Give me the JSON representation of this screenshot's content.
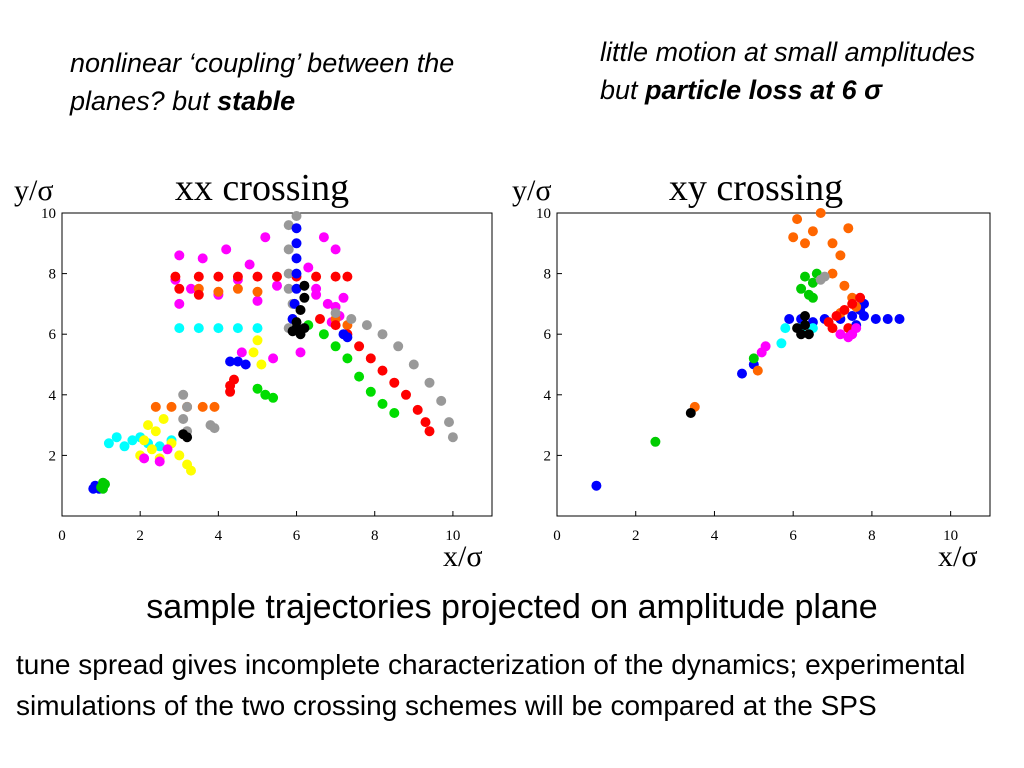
{
  "notes": {
    "left": {
      "text": "nonlinear ‘coupling’ between the planes? but ",
      "bold": "stable"
    },
    "right": {
      "text": "little motion at small amplitudes but ",
      "bold": "particle loss at 6 σ"
    }
  },
  "caption": "sample trajectories projected on amplitude plane",
  "body": "tune spread gives incomplete characterization of the dynamics; experimental simulations of the two crossing schemes will be compared at the SPS",
  "chart_data": [
    {
      "type": "scatter",
      "title": "xx crossing",
      "xlabel": "x/σ",
      "ylabel": "y/σ",
      "xlim": [
        0,
        11
      ],
      "ylim": [
        0,
        10
      ],
      "xticks": [
        0,
        2,
        4,
        6,
        8,
        10
      ],
      "yticks": [
        2,
        4,
        6,
        8,
        10
      ],
      "grid": false,
      "series": [
        {
          "color": "#0000ff",
          "points": [
            [
              0.8,
              0.9
            ],
            [
              0.85,
              1.0
            ],
            [
              0.95,
              0.9
            ],
            [
              1.0,
              1.0
            ],
            [
              0.9,
              0.95
            ]
          ]
        },
        {
          "color": "#00cc00",
          "points": [
            [
              1.05,
              0.9
            ],
            [
              1.1,
              1.05
            ],
            [
              1.05,
              1.1
            ],
            [
              1.0,
              0.95
            ]
          ]
        },
        {
          "color": "#00ffff",
          "points": [
            [
              1.2,
              2.4
            ],
            [
              1.4,
              2.6
            ],
            [
              1.6,
              2.3
            ],
            [
              1.8,
              2.5
            ],
            [
              2.0,
              2.6
            ],
            [
              2.2,
              2.4
            ],
            [
              2.5,
              2.3
            ],
            [
              2.8,
              2.5
            ],
            [
              3.0,
              6.2
            ],
            [
              3.5,
              6.2
            ],
            [
              4.0,
              6.2
            ],
            [
              4.5,
              6.2
            ],
            [
              5.0,
              6.2
            ]
          ]
        },
        {
          "color": "#ffff00",
          "points": [
            [
              2.0,
              2.0
            ],
            [
              2.1,
              2.5
            ],
            [
              2.2,
              3.0
            ],
            [
              2.3,
              2.2
            ],
            [
              2.4,
              2.8
            ],
            [
              2.5,
              1.9
            ],
            [
              2.6,
              3.2
            ],
            [
              2.8,
              2.4
            ],
            [
              3.0,
              2.0
            ],
            [
              3.2,
              1.7
            ],
            [
              3.3,
              1.5
            ],
            [
              5.0,
              5.8
            ],
            [
              5.1,
              5.0
            ],
            [
              4.9,
              5.4
            ]
          ]
        },
        {
          "color": "#ff00ff",
          "points": [
            [
              2.1,
              1.9
            ],
            [
              2.5,
              1.8
            ],
            [
              2.7,
              2.2
            ],
            [
              3.0,
              7.0
            ],
            [
              3.3,
              7.5
            ],
            [
              3.6,
              8.5
            ],
            [
              4.0,
              7.3
            ],
            [
              4.2,
              8.8
            ],
            [
              4.5,
              7.8
            ],
            [
              4.8,
              8.3
            ],
            [
              5.0,
              7.1
            ],
            [
              5.2,
              9.2
            ],
            [
              5.5,
              7.6
            ],
            [
              6.3,
              8.2
            ],
            [
              6.5,
              7.5
            ],
            [
              6.8,
              7.0
            ],
            [
              7.0,
              8.8
            ],
            [
              7.2,
              7.2
            ],
            [
              6.7,
              9.2
            ],
            [
              5.4,
              5.2
            ],
            [
              4.6,
              5.4
            ],
            [
              6.1,
              5.4
            ],
            [
              3.0,
              8.6
            ],
            [
              2.9,
              7.8
            ],
            [
              6.9,
              6.4
            ],
            [
              7.1,
              6.6
            ],
            [
              7.0,
              6.9
            ],
            [
              6.5,
              7.3
            ]
          ]
        },
        {
          "color": "#ff6600",
          "points": [
            [
              2.4,
              3.6
            ],
            [
              2.8,
              3.6
            ],
            [
              3.2,
              3.6
            ],
            [
              3.6,
              3.6
            ],
            [
              3.9,
              3.6
            ],
            [
              3.5,
              7.5
            ],
            [
              4.0,
              7.4
            ],
            [
              4.5,
              7.5
            ],
            [
              5.0,
              7.4
            ],
            [
              7.0,
              6.5
            ],
            [
              7.3,
              6.3
            ]
          ]
        },
        {
          "color": "#ff0000",
          "points": [
            [
              2.9,
              7.9
            ],
            [
              3.5,
              7.9
            ],
            [
              4.0,
              7.9
            ],
            [
              4.5,
              7.9
            ],
            [
              5.0,
              7.9
            ],
            [
              5.5,
              7.9
            ],
            [
              6.0,
              7.9
            ],
            [
              6.5,
              7.9
            ],
            [
              7.0,
              7.9
            ],
            [
              7.3,
              7.9
            ],
            [
              4.3,
              4.3
            ],
            [
              4.4,
              4.5
            ],
            [
              4.3,
              4.1
            ],
            [
              3.0,
              7.5
            ],
            [
              3.5,
              7.3
            ],
            [
              6.6,
              6.5
            ],
            [
              7.0,
              6.3
            ],
            [
              7.3,
              6.0
            ],
            [
              7.6,
              5.6
            ],
            [
              7.9,
              5.2
            ],
            [
              8.2,
              4.8
            ],
            [
              8.5,
              4.4
            ],
            [
              8.8,
              4.0
            ],
            [
              9.1,
              3.5
            ],
            [
              9.3,
              3.1
            ],
            [
              9.4,
              2.8
            ]
          ]
        },
        {
          "color": "#00dd00",
          "points": [
            [
              6.3,
              6.3
            ],
            [
              6.7,
              6.0
            ],
            [
              7.0,
              5.6
            ],
            [
              7.3,
              5.2
            ],
            [
              7.6,
              4.6
            ],
            [
              7.9,
              4.1
            ],
            [
              8.2,
              3.7
            ],
            [
              8.5,
              3.4
            ],
            [
              5.0,
              4.2
            ],
            [
              5.2,
              4.0
            ],
            [
              5.4,
              3.9
            ]
          ]
        },
        {
          "color": "#999999",
          "points": [
            [
              3.1,
              4.0
            ],
            [
              3.2,
              3.6
            ],
            [
              3.1,
              3.2
            ],
            [
              3.2,
              2.8
            ],
            [
              5.8,
              9.6
            ],
            [
              5.8,
              8.8
            ],
            [
              5.8,
              8.0
            ],
            [
              5.8,
              7.5
            ],
            [
              5.9,
              7.0
            ],
            [
              5.9,
              6.5
            ],
            [
              5.8,
              6.2
            ],
            [
              6.0,
              9.9
            ],
            [
              7.0,
              6.7
            ],
            [
              7.4,
              6.5
            ],
            [
              7.8,
              6.3
            ],
            [
              8.2,
              6.0
            ],
            [
              8.6,
              5.6
            ],
            [
              9.0,
              5.0
            ],
            [
              9.4,
              4.4
            ],
            [
              9.7,
              3.8
            ],
            [
              9.9,
              3.1
            ],
            [
              10.0,
              2.6
            ],
            [
              3.8,
              3.0
            ],
            [
              3.9,
              2.9
            ]
          ]
        },
        {
          "color": "#0000ff",
          "points": [
            [
              6.0,
              9.5
            ],
            [
              6.0,
              9.0
            ],
            [
              6.0,
              8.5
            ],
            [
              6.0,
              8.0
            ],
            [
              6.0,
              7.5
            ],
            [
              5.95,
              7.0
            ],
            [
              5.9,
              6.5
            ],
            [
              4.3,
              5.1
            ],
            [
              4.5,
              5.1
            ],
            [
              4.7,
              5.0
            ],
            [
              7.2,
              6.0
            ],
            [
              7.3,
              5.9
            ]
          ]
        },
        {
          "color": "#000000",
          "points": [
            [
              6.0,
              6.4
            ],
            [
              6.0,
              6.2
            ],
            [
              6.1,
              6.0
            ],
            [
              5.9,
              6.1
            ],
            [
              6.2,
              6.2
            ],
            [
              3.1,
              2.7
            ],
            [
              3.2,
              2.6
            ],
            [
              6.1,
              6.8
            ],
            [
              6.2,
              7.2
            ],
            [
              6.2,
              7.6
            ]
          ]
        }
      ]
    },
    {
      "type": "scatter",
      "title": "xy crossing",
      "xlabel": "x/σ",
      "ylabel": "y/σ",
      "xlim": [
        0,
        11
      ],
      "ylim": [
        0,
        10
      ],
      "xticks": [
        0,
        2,
        4,
        6,
        8,
        10
      ],
      "yticks": [
        2,
        4,
        6,
        8,
        10
      ],
      "grid": false,
      "series": [
        {
          "color": "#0000ff",
          "points": [
            [
              1.0,
              1.0
            ],
            [
              4.7,
              4.7
            ],
            [
              5.0,
              5.0
            ],
            [
              5.9,
              6.5
            ],
            [
              6.2,
              6.5
            ],
            [
              6.5,
              6.4
            ],
            [
              6.8,
              6.5
            ],
            [
              7.2,
              6.5
            ],
            [
              7.5,
              6.6
            ],
            [
              7.8,
              6.6
            ],
            [
              8.1,
              6.5
            ],
            [
              8.4,
              6.5
            ],
            [
              8.7,
              6.5
            ],
            [
              7.8,
              7.0
            ],
            [
              7.6,
              6.3
            ],
            [
              7.7,
              6.8
            ]
          ]
        },
        {
          "color": "#00cc00",
          "points": [
            [
              2.5,
              2.45
            ],
            [
              5.0,
              5.2
            ],
            [
              6.2,
              7.5
            ],
            [
              6.3,
              7.9
            ],
            [
              6.4,
              7.3
            ],
            [
              6.5,
              7.7
            ],
            [
              6.6,
              8.0
            ],
            [
              6.5,
              7.2
            ]
          ]
        },
        {
          "color": "#ff6600",
          "points": [
            [
              3.5,
              3.6
            ],
            [
              5.1,
              4.8
            ],
            [
              6.0,
              9.2
            ],
            [
              6.1,
              9.8
            ],
            [
              6.3,
              9.0
            ],
            [
              6.5,
              9.4
            ],
            [
              6.7,
              10.0
            ],
            [
              7.0,
              9.0
            ],
            [
              7.2,
              8.6
            ],
            [
              7.4,
              9.5
            ],
            [
              7.0,
              8.0
            ],
            [
              7.3,
              7.6
            ],
            [
              7.5,
              7.2
            ],
            [
              7.6,
              6.9
            ],
            [
              7.2,
              6.7
            ]
          ]
        },
        {
          "color": "#ff0000",
          "points": [
            [
              6.9,
              6.4
            ],
            [
              7.1,
              6.6
            ],
            [
              7.3,
              6.8
            ],
            [
              7.5,
              7.0
            ],
            [
              7.7,
              7.2
            ],
            [
              7.4,
              6.2
            ],
            [
              7.0,
              6.2
            ]
          ]
        },
        {
          "color": "#ff00ff",
          "points": [
            [
              5.2,
              5.4
            ],
            [
              5.3,
              5.6
            ],
            [
              7.2,
              6.0
            ],
            [
              7.4,
              5.9
            ],
            [
              7.5,
              6.0
            ],
            [
              7.6,
              6.2
            ]
          ]
        },
        {
          "color": "#00ffff",
          "points": [
            [
              5.7,
              5.7
            ],
            [
              5.8,
              6.2
            ],
            [
              6.2,
              6.2
            ],
            [
              6.5,
              6.2
            ]
          ]
        },
        {
          "color": "#000000",
          "points": [
            [
              3.4,
              3.4
            ],
            [
              6.2,
              6.0
            ],
            [
              6.3,
              6.3
            ],
            [
              6.4,
              6.0
            ],
            [
              6.1,
              6.2
            ],
            [
              6.3,
              6.6
            ]
          ]
        },
        {
          "color": "#999999",
          "points": [
            [
              6.8,
              7.9
            ],
            [
              6.7,
              7.8
            ]
          ]
        }
      ]
    }
  ]
}
